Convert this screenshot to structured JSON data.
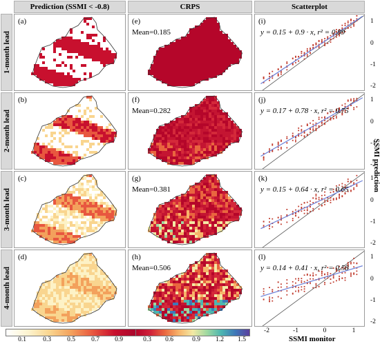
{
  "column_headers": [
    "Prediction (SSMI < -0.8)",
    "CRPS",
    "Scatterplot"
  ],
  "row_headers": [
    "1-month lead",
    "2-month lead",
    "3-month lead",
    "4-month lead"
  ],
  "panel_labels": {
    "prediction": [
      "(a)",
      "(b)",
      "(c)",
      "(d)"
    ],
    "crps": [
      "(e)",
      "(f)",
      "(g)",
      "(h)"
    ],
    "scatter": [
      "(i)",
      "(j)",
      "(k)",
      "(l)"
    ]
  },
  "crps_means": [
    "Mean=0.185",
    "Mean=0.282",
    "Mean=0.381",
    "Mean=0.506"
  ],
  "regression_equations": [
    "y = 0.15 + 0.9 · x,  r² = 0.89",
    "y = 0.17 + 0.78 · x,  r² = 0.75",
    "y = 0.15 + 0.64 · x,  r² = 0.65",
    "y = 0.14 + 0.41 · x,  r² = 0.58"
  ],
  "colorbar_prediction": {
    "ticks": [
      "0.1",
      "0.3",
      "0.5",
      "0.7",
      "0.9"
    ],
    "colors": [
      "#ffffff",
      "#fdf4d0",
      "#f9d58f",
      "#f3a15c",
      "#e8573f",
      "#c8102e",
      "#a8062c"
    ]
  },
  "colorbar_crps": {
    "ticks": [
      "0.3",
      "0.6",
      "0.9",
      "1.2",
      "1.5"
    ],
    "colors": [
      "#b5062a",
      "#d0213a",
      "#e9663f",
      "#f7b36a",
      "#f3e9a4",
      "#9fd8a0",
      "#4db6b0",
      "#3f78b8",
      "#5a3f9e"
    ]
  },
  "scatter_axes": {
    "y_ticks": [
      "1",
      "0",
      "-1",
      "-2"
    ],
    "x_ticks": [
      "-2",
      "-1",
      "0",
      "1"
    ],
    "xlabel": "SSMI monitor",
    "ylabel": "SSMI prediction"
  },
  "chart_data": [
    {
      "type": "scatter",
      "panel": "(i)",
      "title": "Scatterplot",
      "xlabel": "SSMI monitor",
      "ylabel": "SSMI prediction",
      "xlim": [
        -2.4,
        1.4
      ],
      "ylim": [
        -2.2,
        1.4
      ],
      "intercept": 0.15,
      "slope": 0.9,
      "r2": 0.89,
      "x": [
        -2.1,
        -1.9,
        -1.8,
        -1.6,
        -1.5,
        -1.3,
        -1.1,
        -1.0,
        -0.9,
        -0.8,
        -0.7,
        -0.6,
        -0.5,
        -0.4,
        -0.3,
        -0.2,
        -0.1,
        0.0,
        0.1,
        0.2,
        0.3,
        0.4,
        0.5,
        0.6,
        0.7,
        0.8,
        0.9,
        1.0,
        1.1
      ],
      "y": [
        -1.7,
        -1.5,
        -1.4,
        -1.3,
        -1.2,
        -1.0,
        -0.8,
        -0.7,
        -0.6,
        -0.5,
        -0.5,
        -0.4,
        -0.3,
        -0.2,
        -0.1,
        0.0,
        0.1,
        0.1,
        0.2,
        0.3,
        0.4,
        0.5,
        0.6,
        0.7,
        0.8,
        0.9,
        1.0,
        1.0,
        1.2
      ]
    },
    {
      "type": "scatter",
      "panel": "(j)",
      "xlabel": "SSMI monitor",
      "ylabel": "SSMI prediction",
      "xlim": [
        -2.4,
        1.4
      ],
      "ylim": [
        -2.2,
        1.4
      ],
      "intercept": 0.17,
      "slope": 0.78,
      "r2": 0.75,
      "x": [
        -2.1,
        -1.9,
        -1.8,
        -1.6,
        -1.5,
        -1.3,
        -1.1,
        -1.0,
        -0.9,
        -0.8,
        -0.7,
        -0.6,
        -0.5,
        -0.4,
        -0.3,
        -0.2,
        -0.1,
        0.0,
        0.1,
        0.2,
        0.3,
        0.4,
        0.5,
        0.6,
        0.7,
        0.8,
        0.9,
        1.0,
        1.1
      ],
      "y": [
        -1.5,
        -1.3,
        -1.2,
        -1.1,
        -1.0,
        -0.9,
        -0.7,
        -0.6,
        -0.5,
        -0.4,
        -0.4,
        -0.3,
        -0.2,
        -0.1,
        -0.1,
        0.0,
        0.1,
        0.2,
        0.2,
        0.3,
        0.4,
        0.5,
        0.5,
        0.6,
        0.7,
        0.8,
        0.9,
        0.9,
        1.0
      ]
    },
    {
      "type": "scatter",
      "panel": "(k)",
      "xlabel": "SSMI monitor",
      "ylabel": "SSMI prediction",
      "xlim": [
        -2.4,
        1.4
      ],
      "ylim": [
        -2.2,
        1.4
      ],
      "intercept": 0.15,
      "slope": 0.64,
      "r2": 0.65,
      "x": [
        -2.1,
        -1.9,
        -1.8,
        -1.6,
        -1.5,
        -1.3,
        -1.1,
        -1.0,
        -0.9,
        -0.8,
        -0.7,
        -0.6,
        -0.5,
        -0.4,
        -0.3,
        -0.2,
        -0.1,
        0.0,
        0.1,
        0.2,
        0.3,
        0.4,
        0.5,
        0.6,
        0.7,
        0.8,
        0.9,
        1.0,
        1.1
      ],
      "y": [
        -1.2,
        -1.1,
        -1.0,
        -0.9,
        -0.8,
        -0.7,
        -0.6,
        -0.5,
        -0.4,
        -0.4,
        -0.3,
        -0.2,
        -0.2,
        -0.1,
        0.0,
        0.0,
        0.1,
        0.2,
        0.2,
        0.3,
        0.3,
        0.4,
        0.5,
        0.5,
        0.6,
        0.7,
        0.7,
        0.8,
        0.9
      ]
    },
    {
      "type": "scatter",
      "panel": "(l)",
      "xlabel": "SSMI monitor",
      "ylabel": "SSMI prediction",
      "xlim": [
        -2.4,
        1.4
      ],
      "ylim": [
        -2.2,
        1.4
      ],
      "intercept": 0.14,
      "slope": 0.41,
      "r2": 0.58,
      "x": [
        -2.1,
        -1.9,
        -1.8,
        -1.6,
        -1.5,
        -1.3,
        -1.1,
        -1.0,
        -0.9,
        -0.8,
        -0.7,
        -0.6,
        -0.5,
        -0.4,
        -0.3,
        -0.2,
        -0.1,
        0.0,
        0.1,
        0.2,
        0.3,
        0.4,
        0.5,
        0.6,
        0.7,
        0.8,
        0.9,
        1.0,
        1.1
      ],
      "y": [
        -0.8,
        -0.7,
        -0.6,
        -0.5,
        -0.5,
        -0.4,
        -0.3,
        -0.3,
        -0.2,
        -0.2,
        -0.1,
        -0.1,
        0.0,
        0.0,
        0.0,
        0.1,
        0.1,
        0.1,
        0.2,
        0.2,
        0.3,
        0.3,
        0.3,
        0.4,
        0.4,
        0.5,
        0.5,
        0.6,
        0.6
      ]
    }
  ]
}
